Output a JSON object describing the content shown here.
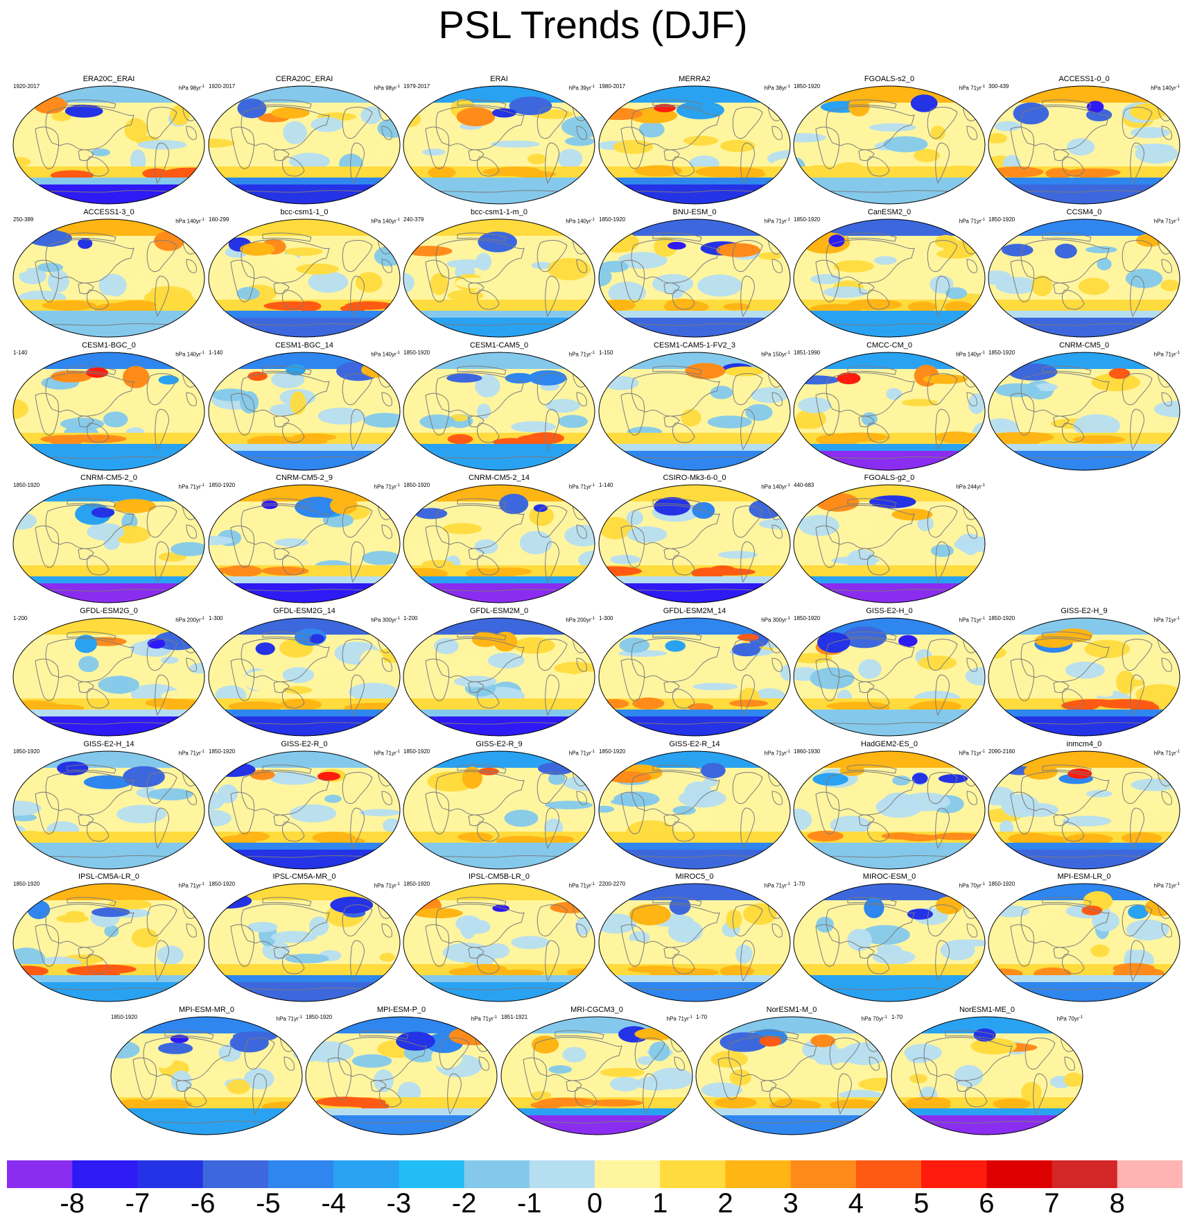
{
  "title": "PSL Trends (DJF)",
  "chart_data": {
    "type": "heatmap",
    "title": "PSL Trends (DJF)",
    "projection": "Robinson (global maps, Pacific-centred)",
    "colorbar": {
      "ticks": [
        "-8",
        "-7",
        "-6",
        "-5",
        "-4",
        "-3",
        "-2",
        "-1",
        "0",
        "1",
        "2",
        "3",
        "4",
        "5",
        "6",
        "7",
        "8"
      ],
      "colors": [
        "#8a2df0",
        "#2e1af5",
        "#2433e6",
        "#3d68dd",
        "#2f86ef",
        "#2aa2f2",
        "#22bdf4",
        "#84c9ec",
        "#b6def1",
        "#fff59f",
        "#ffdb3d",
        "#ffb514",
        "#ff8c1a",
        "#ff5a14",
        "#ff1c0c",
        "#dd0000",
        "#d32626",
        "#ffb3b3"
      ]
    },
    "rows": [
      [
        {
          "name": "ERA20C_ERAI",
          "years": "1920-2017",
          "units": "hPa 98yr",
          "exp": "-1"
        },
        {
          "name": "CERA20C_ERAI",
          "years": "1920-2017",
          "units": "hPa 98yr",
          "exp": "-1"
        },
        {
          "name": "ERAI",
          "years": "1979-2017",
          "units": "hPa 39yr",
          "exp": "-1"
        },
        {
          "name": "MERRA2",
          "years": "1980-2017",
          "units": "hPa 38yr",
          "exp": "-1"
        },
        {
          "name": "FGOALS-s2_0",
          "years": "1850-1920",
          "units": "hPa 71yr",
          "exp": "-1"
        },
        {
          "name": "ACCESS1-0_0",
          "years": "300-439",
          "units": "hPa 140yr",
          "exp": "-1"
        }
      ],
      [
        {
          "name": "ACCESS1-3_0",
          "years": "250-389",
          "units": "hPa 140yr",
          "exp": "-1"
        },
        {
          "name": "bcc-csm1-1_0",
          "years": "160-299",
          "units": "hPa 140yr",
          "exp": "-1"
        },
        {
          "name": "bcc-csm1-1-m_0",
          "years": "240-379",
          "units": "hPa 140yr",
          "exp": "-1"
        },
        {
          "name": "BNU-ESM_0",
          "years": "1850-1920",
          "units": "hPa 71yr",
          "exp": "-1"
        },
        {
          "name": "CanESM2_0",
          "years": "1850-1920",
          "units": "hPa 71yr",
          "exp": "-1"
        },
        {
          "name": "CCSM4_0",
          "years": "1850-1920",
          "units": "hPa 71yr",
          "exp": "-1"
        }
      ],
      [
        {
          "name": "CESM1-BGC_0",
          "years": "1-140",
          "units": "hPa 140yr",
          "exp": "-1"
        },
        {
          "name": "CESM1-BGC_14",
          "years": "1-140",
          "units": "hPa 140yr",
          "exp": "-1"
        },
        {
          "name": "CESM1-CAM5_0",
          "years": "1850-1920",
          "units": "hPa 71yr",
          "exp": "-1"
        },
        {
          "name": "CESM1-CAM5-1-FV2_3",
          "years": "1-150",
          "units": "hPa 150yr",
          "exp": "-1"
        },
        {
          "name": "CMCC-CM_0",
          "years": "1851-1990",
          "units": "hPa 140yr",
          "exp": "-1"
        },
        {
          "name": "CNRM-CM5_0",
          "years": "1850-1920",
          "units": "hPa 71yr",
          "exp": "-1"
        }
      ],
      [
        {
          "name": "CNRM-CM5-2_0",
          "years": "1850-1920",
          "units": "hPa 71yr",
          "exp": "-1"
        },
        {
          "name": "CNRM-CM5-2_9",
          "years": "1850-1920",
          "units": "hPa 71yr",
          "exp": "-1"
        },
        {
          "name": "CNRM-CM5-2_14",
          "years": "1850-1920",
          "units": "hPa 71yr",
          "exp": "-1"
        },
        {
          "name": "CSIRO-Mk3-6-0_0",
          "years": "1-140",
          "units": "hPa 140yr",
          "exp": "-1"
        },
        {
          "name": "FGOALS-g2_0",
          "years": "440-683",
          "units": "hPa 244yr",
          "exp": "-1"
        }
      ],
      [
        {
          "name": "GFDL-ESM2G_0",
          "years": "1-200",
          "units": "hPa 200yr",
          "exp": "-1"
        },
        {
          "name": "GFDL-ESM2G_14",
          "years": "1-300",
          "units": "hPa 300yr",
          "exp": "-1"
        },
        {
          "name": "GFDL-ESM2M_0",
          "years": "1-200",
          "units": "hPa 200yr",
          "exp": "-1"
        },
        {
          "name": "GFDL-ESM2M_14",
          "years": "1-300",
          "units": "hPa 300yr",
          "exp": "-1"
        },
        {
          "name": "GISS-E2-H_0",
          "years": "1850-1920",
          "units": "hPa 71yr",
          "exp": "-1"
        },
        {
          "name": "GISS-E2-H_9",
          "years": "1850-1920",
          "units": "hPa 71yr",
          "exp": "-1"
        }
      ],
      [
        {
          "name": "GISS-E2-H_14",
          "years": "1850-1920",
          "units": "hPa 71yr",
          "exp": "-1"
        },
        {
          "name": "GISS-E2-R_0",
          "years": "1850-1920",
          "units": "hPa 71yr",
          "exp": "-1"
        },
        {
          "name": "GISS-E2-R_9",
          "years": "1850-1920",
          "units": "hPa 71yr",
          "exp": "-1"
        },
        {
          "name": "GISS-E2-R_14",
          "years": "1850-1920",
          "units": "hPa 71yr",
          "exp": "-1"
        },
        {
          "name": "HadGEM2-ES_0",
          "years": "1860-1930",
          "units": "hPa 71yr",
          "exp": "-1"
        },
        {
          "name": "inmcm4_0",
          "years": "2090-2160",
          "units": "hPa 71yr",
          "exp": "-1"
        }
      ],
      [
        {
          "name": "IPSL-CM5A-LR_0",
          "years": "1850-1920",
          "units": "hPa 71yr",
          "exp": "-1"
        },
        {
          "name": "IPSL-CM5A-MR_0",
          "years": "1850-1920",
          "units": "hPa 71yr",
          "exp": "-1"
        },
        {
          "name": "IPSL-CM5B-LR_0",
          "years": "1850-1920",
          "units": "hPa 71yr",
          "exp": "-1"
        },
        {
          "name": "MIROC5_0",
          "years": "2200-2270",
          "units": "hPa 71yr",
          "exp": "-1"
        },
        {
          "name": "MIROC-ESM_0",
          "years": "1-70",
          "units": "hPa 70yr",
          "exp": "-1"
        },
        {
          "name": "MPI-ESM-LR_0",
          "years": "1850-1920",
          "units": "hPa 71yr",
          "exp": "-1"
        }
      ],
      [
        {
          "name": "MPI-ESM-MR_0",
          "years": "1850-1920",
          "units": "hPa 71yr",
          "exp": "-1"
        },
        {
          "name": "MPI-ESM-P_0",
          "years": "1850-1920",
          "units": "hPa 71yr",
          "exp": "-1"
        },
        {
          "name": "MRI-CGCM3_0",
          "years": "1851-1921",
          "units": "hPa 71yr",
          "exp": "-1"
        },
        {
          "name": "NorESM1-M_0",
          "years": "1-70",
          "units": "hPa 70yr",
          "exp": "-1"
        },
        {
          "name": "NorESM1-ME_0",
          "years": "1-70",
          "units": "hPa 70yr",
          "exp": "-1"
        }
      ]
    ]
  }
}
